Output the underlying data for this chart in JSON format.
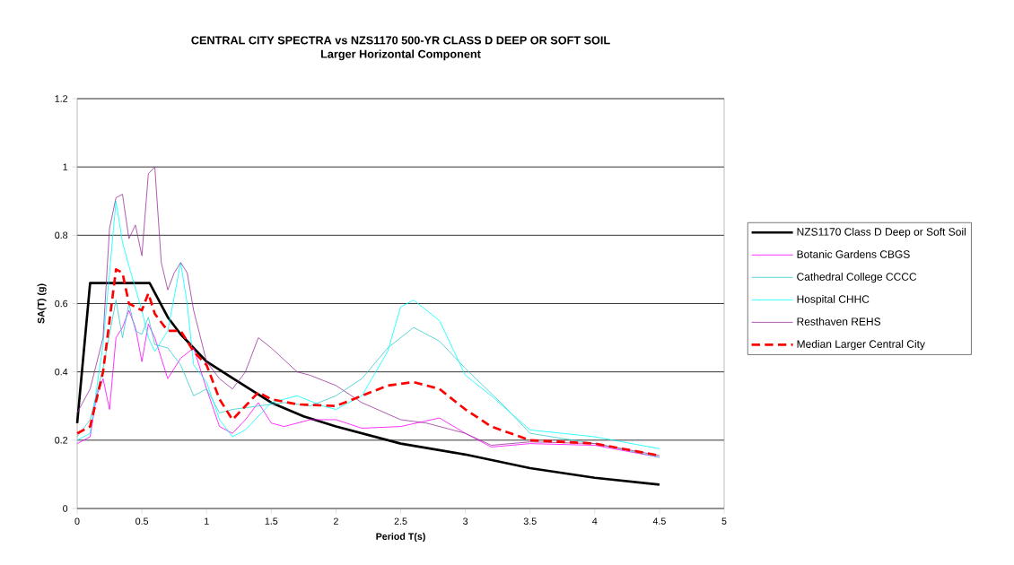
{
  "chart_data": {
    "type": "line",
    "title": "CENTRAL CITY SPECTRA vs NZS1170 500-YR CLASS D DEEP OR SOFT SOIL",
    "subtitle": "Larger Horizontal Component",
    "xlabel": "Period T(s)",
    "ylabel": "SA(T) (g)",
    "xlim": [
      0,
      5
    ],
    "xticks": [
      0,
      0.5,
      1,
      1.5,
      2,
      2.5,
      3,
      3.5,
      4,
      4.5,
      5
    ],
    "ylim": [
      0,
      1.2
    ],
    "yticks": [
      0,
      0.2,
      0.4,
      0.6,
      0.8,
      1,
      1.2
    ],
    "grid": "y",
    "legend": "right",
    "marker": "none",
    "series": [
      {
        "name": "NZS1170 Class D Deep or Soft Soil",
        "color": "#000000",
        "line_style": "solid",
        "x": [
          0,
          0.1,
          0.56,
          0.7,
          0.8,
          1,
          1.25,
          1.5,
          1.75,
          2,
          2.5,
          3,
          3.5,
          4,
          4.5
        ],
        "values": [
          0.25,
          0.66,
          0.66,
          0.56,
          0.51,
          0.43,
          0.37,
          0.31,
          0.27,
          0.24,
          0.19,
          0.158,
          0.118,
          0.09,
          0.07
        ]
      },
      {
        "name": "Botanic Gardens CBGS",
        "color": "#ff00ff",
        "line_style": "solid",
        "x": [
          0,
          0.1,
          0.15,
          0.2,
          0.25,
          0.3,
          0.35,
          0.4,
          0.45,
          0.5,
          0.55,
          0.6,
          0.7,
          0.8,
          0.9,
          1,
          1.1,
          1.2,
          1.3,
          1.4,
          1.5,
          1.6,
          1.8,
          2,
          2.2,
          2.5,
          2.8,
          3,
          3.2,
          3.5,
          4,
          4.5
        ],
        "values": [
          0.19,
          0.21,
          0.33,
          0.38,
          0.29,
          0.5,
          0.53,
          0.58,
          0.53,
          0.43,
          0.54,
          0.5,
          0.38,
          0.44,
          0.47,
          0.35,
          0.24,
          0.22,
          0.26,
          0.31,
          0.25,
          0.24,
          0.26,
          0.26,
          0.235,
          0.24,
          0.265,
          0.22,
          0.18,
          0.19,
          0.185,
          0.15
        ]
      },
      {
        "name": "Cathedral College CCCC",
        "color": "#33cccc",
        "line_style": "solid",
        "x": [
          0,
          0.1,
          0.2,
          0.3,
          0.35,
          0.4,
          0.45,
          0.5,
          0.55,
          0.6,
          0.7,
          0.8,
          0.9,
          1,
          1.1,
          1.2,
          1.4,
          1.6,
          1.8,
          2,
          2.2,
          2.4,
          2.6,
          2.8,
          3,
          3.3,
          3.5,
          4,
          4.5
        ],
        "values": [
          0.21,
          0.26,
          0.41,
          0.61,
          0.5,
          0.6,
          0.52,
          0.51,
          0.56,
          0.48,
          0.47,
          0.42,
          0.33,
          0.35,
          0.28,
          0.29,
          0.3,
          0.31,
          0.3,
          0.33,
          0.38,
          0.47,
          0.53,
          0.49,
          0.41,
          0.3,
          0.22,
          0.19,
          0.15
        ]
      },
      {
        "name": "Hospital CHHC",
        "color": "#00ffff",
        "line_style": "solid",
        "x": [
          0,
          0.1,
          0.2,
          0.3,
          0.35,
          0.4,
          0.5,
          0.55,
          0.6,
          0.7,
          0.8,
          0.85,
          0.9,
          1,
          1.1,
          1.2,
          1.3,
          1.5,
          1.7,
          1.9,
          2,
          2.2,
          2.4,
          2.5,
          2.6,
          2.8,
          3,
          3.2,
          3.5,
          4,
          4.5
        ],
        "values": [
          0.2,
          0.22,
          0.48,
          0.9,
          0.78,
          0.71,
          0.58,
          0.5,
          0.46,
          0.52,
          0.72,
          0.6,
          0.42,
          0.37,
          0.26,
          0.21,
          0.23,
          0.31,
          0.33,
          0.3,
          0.29,
          0.33,
          0.46,
          0.59,
          0.61,
          0.55,
          0.39,
          0.33,
          0.23,
          0.21,
          0.175
        ]
      },
      {
        "name": "Resthaven REHS",
        "color": "#993399",
        "line_style": "solid",
        "x": [
          0,
          0.1,
          0.2,
          0.25,
          0.3,
          0.35,
          0.4,
          0.45,
          0.5,
          0.55,
          0.6,
          0.65,
          0.7,
          0.75,
          0.8,
          0.85,
          0.9,
          1,
          1.1,
          1.2,
          1.3,
          1.4,
          1.5,
          1.7,
          1.8,
          2,
          2.2,
          2.5,
          2.7,
          3,
          3.2,
          3.5,
          4,
          4.5
        ],
        "values": [
          0.28,
          0.35,
          0.5,
          0.82,
          0.91,
          0.92,
          0.79,
          0.83,
          0.74,
          0.98,
          1.0,
          0.72,
          0.64,
          0.69,
          0.72,
          0.69,
          0.58,
          0.43,
          0.38,
          0.35,
          0.4,
          0.5,
          0.47,
          0.4,
          0.39,
          0.36,
          0.31,
          0.26,
          0.25,
          0.22,
          0.185,
          0.195,
          0.19,
          0.155
        ]
      },
      {
        "name": "Median Larger Central City",
        "color": "#ff0000",
        "line_style": "dashed",
        "x": [
          0,
          0.1,
          0.2,
          0.25,
          0.3,
          0.35,
          0.4,
          0.5,
          0.55,
          0.6,
          0.7,
          0.8,
          0.9,
          1,
          1.1,
          1.2,
          1.3,
          1.4,
          1.5,
          1.7,
          2,
          2.2,
          2.4,
          2.6,
          2.8,
          3,
          3.2,
          3.5,
          4,
          4.5
        ],
        "values": [
          0.22,
          0.24,
          0.4,
          0.55,
          0.7,
          0.69,
          0.6,
          0.58,
          0.63,
          0.57,
          0.52,
          0.52,
          0.46,
          0.42,
          0.32,
          0.26,
          0.3,
          0.34,
          0.32,
          0.305,
          0.3,
          0.33,
          0.36,
          0.37,
          0.35,
          0.29,
          0.24,
          0.2,
          0.19,
          0.155
        ]
      }
    ]
  }
}
